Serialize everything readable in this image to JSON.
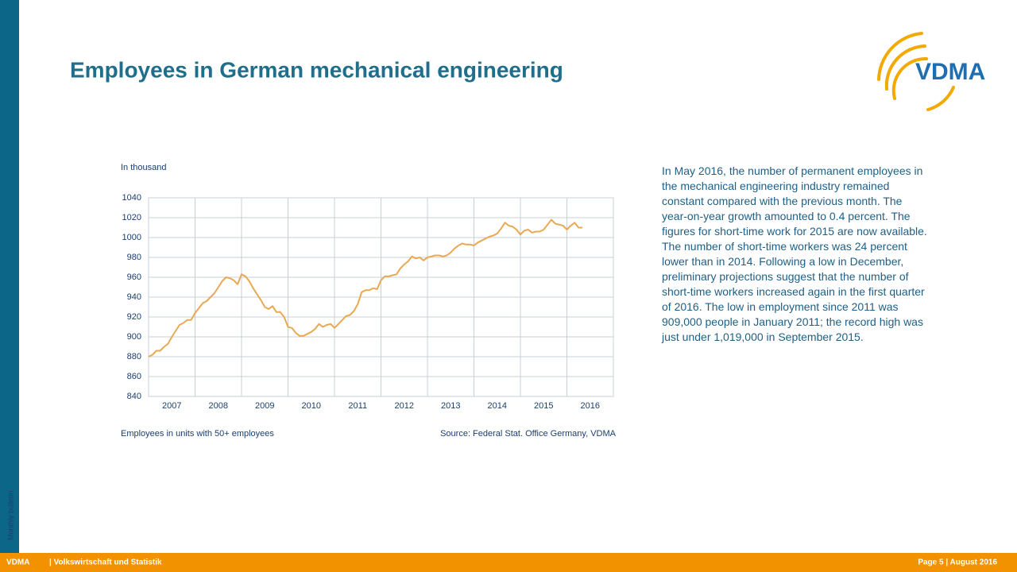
{
  "header": {
    "title": "Employees in German mechanical engineering",
    "logo": "VDMA"
  },
  "sidebar": "Monthly bulletin",
  "footer": {
    "org": "VDMA",
    "dept": "| Volkswirtschaft und Statistik",
    "page": "Page 5 | August 2016"
  },
  "body_text": "In May 2016, the number of permanent employees in the mechanical engineering industry remained constant compared with the previous month. The year-on-year growth amounted to 0.4 percent. The figures for short-time work for 2015 are now available. The number of short-time workers was 24 percent lower than in 2014. Following a low in December, preliminary projections suggest that the number of short-time workers increased again in the first quarter of 2016. The low in employment since 2011 was 909,000 people in January 2011; the record high was just under 1,019,000 in September 2015.",
  "chart_data": {
    "type": "line",
    "y_label": "In thousand",
    "note": "Employees in units with 50+ employees",
    "source": "Source: Federal Stat. Office Germany, VDMA",
    "color": "#e8a952",
    "grid": true,
    "xlim": [
      2007,
      2017
    ],
    "xticks": [
      2007,
      2008,
      2009,
      2010,
      2011,
      2012,
      2013,
      2014,
      2015,
      2016
    ],
    "ylim": [
      840,
      1040
    ],
    "yticks": [
      840,
      860,
      880,
      900,
      920,
      940,
      960,
      980,
      1000,
      1020,
      1040
    ],
    "x": [
      2007,
      2007.083,
      2007.167,
      2007.25,
      2007.333,
      2007.417,
      2007.5,
      2007.583,
      2007.667,
      2007.75,
      2007.833,
      2007.917,
      2008,
      2008.083,
      2008.167,
      2008.25,
      2008.333,
      2008.417,
      2008.5,
      2008.583,
      2008.667,
      2008.75,
      2008.833,
      2008.917,
      2009,
      2009.083,
      2009.167,
      2009.25,
      2009.333,
      2009.417,
      2009.5,
      2009.583,
      2009.667,
      2009.75,
      2009.833,
      2009.917,
      2010,
      2010.083,
      2010.167,
      2010.25,
      2010.333,
      2010.417,
      2010.5,
      2010.583,
      2010.667,
      2010.75,
      2010.833,
      2010.917,
      2011,
      2011.083,
      2011.167,
      2011.25,
      2011.333,
      2011.417,
      2011.5,
      2011.583,
      2011.667,
      2011.75,
      2011.833,
      2011.917,
      2012,
      2012.083,
      2012.167,
      2012.25,
      2012.333,
      2012.417,
      2012.5,
      2012.583,
      2012.667,
      2012.75,
      2012.833,
      2012.917,
      2013,
      2013.083,
      2013.167,
      2013.25,
      2013.333,
      2013.417,
      2013.5,
      2013.583,
      2013.667,
      2013.75,
      2013.833,
      2013.917,
      2014,
      2014.083,
      2014.167,
      2014.25,
      2014.333,
      2014.417,
      2014.5,
      2014.583,
      2014.667,
      2014.75,
      2014.833,
      2014.917,
      2015,
      2015.083,
      2015.167,
      2015.25,
      2015.333,
      2015.417,
      2015.5,
      2015.583,
      2015.667,
      2015.75,
      2015.833,
      2015.917,
      2016,
      2016.083,
      2016.167,
      2016.25,
      2016.333
    ],
    "values": [
      880,
      882,
      886,
      886,
      890,
      893,
      900,
      906,
      912,
      914,
      917,
      917,
      924,
      929,
      934,
      936,
      940,
      944,
      950,
      956,
      960,
      959,
      957,
      953,
      963,
      961,
      956,
      949,
      943,
      937,
      930,
      928,
      931,
      925,
      925,
      920,
      910,
      909,
      904,
      901,
      901,
      903,
      905,
      908,
      913,
      910,
      912,
      913,
      909,
      913,
      917,
      921,
      922,
      926,
      933,
      945,
      947,
      947,
      949,
      948,
      957,
      961,
      961,
      962,
      963,
      969,
      973,
      976,
      981,
      979,
      980,
      977,
      980,
      981,
      982,
      982,
      981,
      982,
      985,
      989,
      992,
      994,
      993,
      993,
      992,
      995,
      997,
      999,
      1001,
      1002,
      1004,
      1009,
      1015,
      1012,
      1011,
      1008,
      1003,
      1007,
      1008,
      1005,
      1006,
      1006,
      1008,
      1013,
      1018,
      1014,
      1013,
      1012,
      1008,
      1012,
      1015,
      1010,
      1010
    ]
  }
}
